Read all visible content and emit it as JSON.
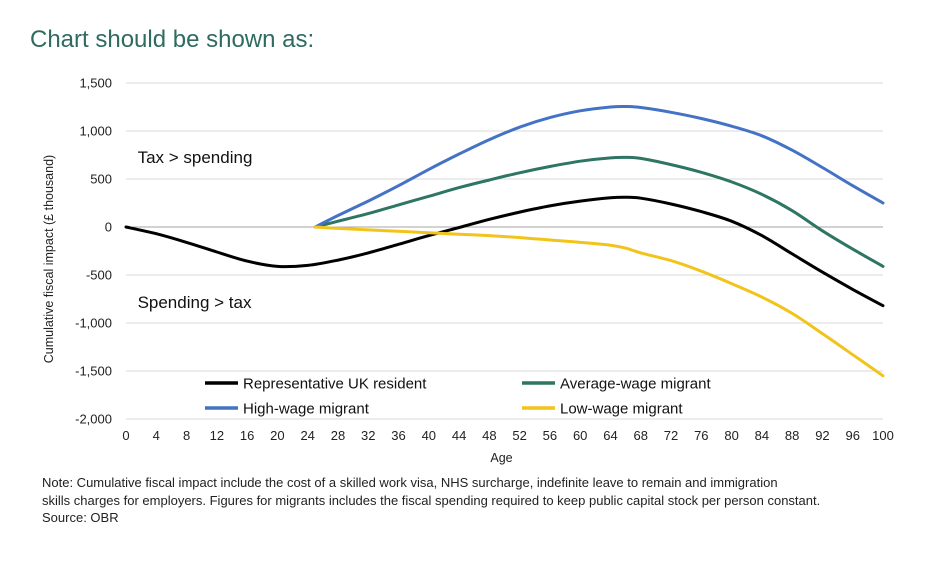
{
  "heading": "Chart should be shown as:",
  "note": {
    "line1": "Note: Cumulative fiscal impact include the cost of a skilled work visa, NHS surcharge, indefinite leave to remain and immigration",
    "line2": "skills charges for employers. Figures for migrants includes the fiscal spending required to keep public capital stock per person constant.",
    "line3": "Source: OBR"
  },
  "chart_data": {
    "type": "line",
    "title": "",
    "xlabel": "Age",
    "ylabel": "Cumulative fiscal impact (£ thousand)",
    "xlim": [
      0,
      100
    ],
    "ylim": [
      -2000,
      1500
    ],
    "x_ticks": [
      0,
      4,
      8,
      12,
      16,
      20,
      24,
      28,
      32,
      36,
      40,
      44,
      48,
      52,
      56,
      60,
      64,
      68,
      72,
      76,
      80,
      84,
      88,
      92,
      96,
      100
    ],
    "y_ticks": [
      1500,
      1000,
      500,
      0,
      -500,
      -1000,
      -1500,
      -2000
    ],
    "y_tick_labels": [
      "1,500",
      "1,000",
      "500",
      "0",
      "-500",
      "-1,000",
      "-1,500",
      "-2,000"
    ],
    "grid": "horizontal",
    "annotations": [
      {
        "text": "Tax > spending",
        "x": 1,
        "y": 730
      },
      {
        "text": "Spending > tax",
        "x": 1,
        "y": -780
      }
    ],
    "series": [
      {
        "name": "Representative UK resident",
        "color": "#000000",
        "x": [
          0,
          4,
          8,
          12,
          16,
          20,
          24,
          28,
          32,
          36,
          40,
          44,
          48,
          52,
          56,
          60,
          64,
          66,
          68,
          72,
          76,
          80,
          84,
          88,
          92,
          96,
          100
        ],
        "y": [
          0,
          -70,
          -160,
          -260,
          -355,
          -410,
          -400,
          -345,
          -270,
          -180,
          -90,
          -5,
          80,
          155,
          220,
          270,
          305,
          310,
          300,
          240,
          160,
          60,
          -90,
          -280,
          -470,
          -650,
          -820
        ]
      },
      {
        "name": "Average-wage migrant",
        "color": "#2e7563",
        "x": [
          25,
          28,
          32,
          36,
          40,
          44,
          48,
          52,
          56,
          60,
          64,
          66,
          68,
          72,
          76,
          80,
          84,
          88,
          92,
          96,
          100
        ],
        "y": [
          0,
          60,
          140,
          230,
          320,
          410,
          490,
          565,
          630,
          685,
          720,
          725,
          715,
          650,
          570,
          470,
          340,
          170,
          -40,
          -230,
          -410
        ]
      },
      {
        "name": "High-wage migrant",
        "color": "#4472c4",
        "x": [
          25,
          28,
          32,
          36,
          40,
          44,
          48,
          52,
          56,
          60,
          64,
          66,
          68,
          72,
          76,
          80,
          84,
          88,
          92,
          96,
          100
        ],
        "y": [
          0,
          120,
          270,
          430,
          600,
          760,
          910,
          1040,
          1140,
          1210,
          1250,
          1255,
          1245,
          1195,
          1130,
          1050,
          950,
          800,
          620,
          430,
          250
        ]
      },
      {
        "name": "Low-wage migrant",
        "color": "#f2c41b",
        "x": [
          25,
          28,
          32,
          36,
          40,
          44,
          48,
          52,
          56,
          60,
          64,
          66,
          68,
          72,
          76,
          80,
          84,
          88,
          92,
          96,
          100
        ],
        "y": [
          0,
          -15,
          -30,
          -45,
          -60,
          -75,
          -90,
          -110,
          -135,
          -160,
          -190,
          -220,
          -270,
          -350,
          -460,
          -590,
          -730,
          -900,
          -1110,
          -1330,
          -1550
        ]
      }
    ],
    "legend": {
      "placement": "bottom-center",
      "order": [
        "Representative UK resident",
        "Average-wage migrant",
        "High-wage migrant",
        "Low-wage migrant"
      ]
    }
  }
}
